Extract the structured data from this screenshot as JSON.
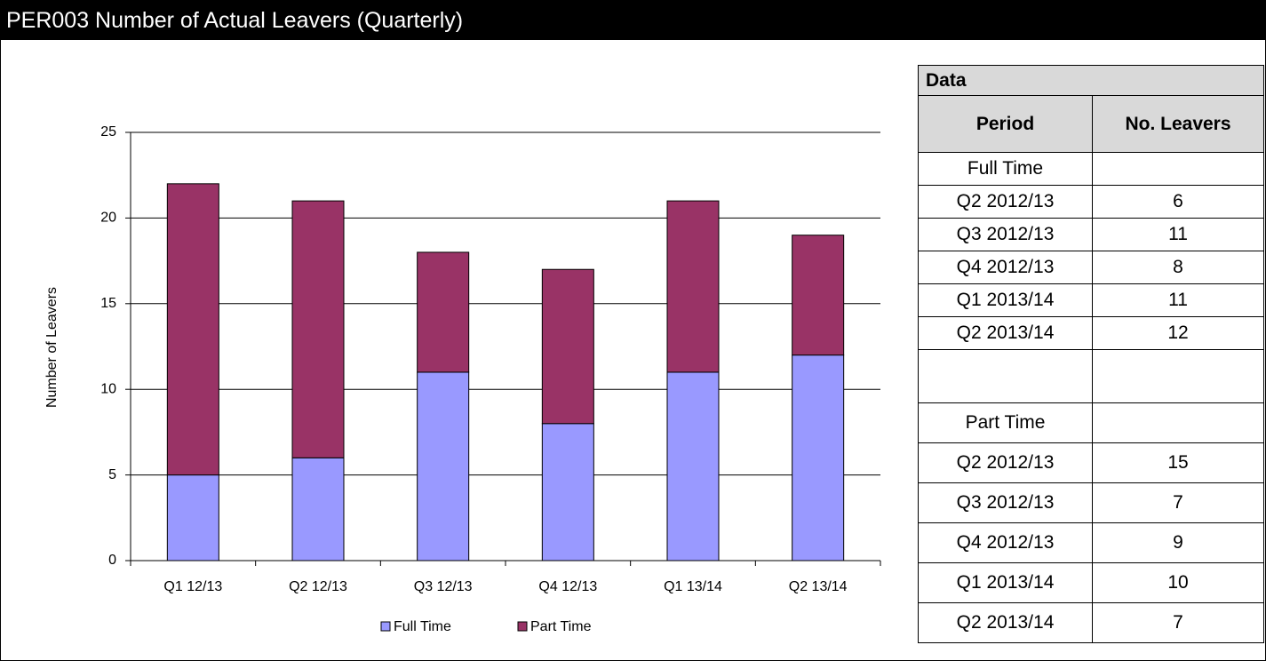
{
  "header": {
    "title": "PER003 Number of Actual Leavers (Quarterly)"
  },
  "chart_data": {
    "type": "stacked_bar",
    "ylabel": "Number of Leavers",
    "categories": [
      "Q1 12/13",
      "Q2 12/13",
      "Q3 12/13",
      "Q4 12/13",
      "Q1 13/14",
      "Q2 13/14"
    ],
    "series": [
      {
        "name": "Full Time",
        "color": "#9999ff",
        "values": [
          5,
          6,
          11,
          8,
          11,
          12
        ]
      },
      {
        "name": "Part Time",
        "color": "#993366",
        "values": [
          17,
          15,
          7,
          9,
          10,
          7
        ]
      }
    ],
    "ylim": [
      0,
      25
    ],
    "yticks": [
      0,
      5,
      10,
      15,
      20,
      25
    ],
    "grid": true,
    "legend": "bottom"
  },
  "table": {
    "title": "Data",
    "columns": [
      "Period",
      "No. Leavers"
    ],
    "groups": [
      {
        "name": "Full Time",
        "rows": [
          [
            "Q2 2012/13",
            6
          ],
          [
            "Q3 2012/13",
            11
          ],
          [
            "Q4 2012/13",
            8
          ],
          [
            "Q1 2013/14",
            11
          ],
          [
            "Q2 2013/14",
            12
          ]
        ]
      },
      {
        "name": "Part Time",
        "rows": [
          [
            "Q2 2012/13",
            15
          ],
          [
            "Q3 2012/13",
            7
          ],
          [
            "Q4 2012/13",
            9
          ],
          [
            "Q1 2013/14",
            10
          ],
          [
            "Q2 2013/14",
            7
          ]
        ]
      }
    ]
  }
}
